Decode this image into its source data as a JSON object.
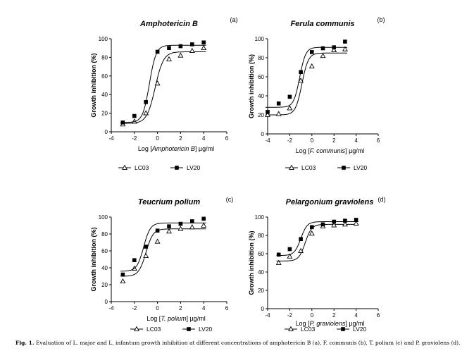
{
  "caption": {
    "label": "Fig. 1.",
    "text": "Evaluation of L. major and L. infantum growth inhibition at different concentrations of amphotericin B (a), F. communis (b), T. polium (c) and P. graviolens (d)."
  },
  "chart_data": [
    {
      "type": "scatter",
      "title": "Amphotericin B",
      "panel_label": "(a)",
      "xlabel_prefix": "Log [",
      "xlabel_italic": "Amphotericin B",
      "xlabel_suffix": "] µg/ml",
      "ylabel": "Growth inhibition (%)",
      "xlim": [
        -4,
        6
      ],
      "ylim": [
        0,
        100
      ],
      "xticks": [
        -4,
        -2,
        0,
        2,
        4,
        6
      ],
      "yticks": [
        0,
        20,
        40,
        60,
        80,
        100
      ],
      "legend_position": "bottom",
      "series": [
        {
          "name": "LC03",
          "marker": "triangle-open",
          "x": [
            -3,
            -2,
            -1,
            0,
            1,
            2,
            3,
            4
          ],
          "y": [
            8,
            11,
            20,
            52,
            78,
            82,
            87,
            90
          ],
          "fit": {
            "bottom": 9,
            "top": 86,
            "logec50": -0.2,
            "hill": 1.2
          }
        },
        {
          "name": "LV20",
          "marker": "square-filled",
          "x": [
            -3,
            -2,
            -1,
            0,
            1,
            2,
            3,
            4
          ],
          "y": [
            10,
            17,
            32,
            86,
            90,
            92,
            94,
            96
          ],
          "fit": {
            "bottom": 10,
            "top": 93,
            "logec50": -0.7,
            "hill": 1.5
          }
        }
      ]
    },
    {
      "type": "scatter",
      "title": "Ferula communis",
      "panel_label": "(b)",
      "xlabel_prefix": "Log [",
      "xlabel_italic": "F. communis",
      "xlabel_suffix": "] µg/ml",
      "ylabel": "Growth inhibition (%)",
      "xlim": [
        -4,
        6
      ],
      "ylim": [
        0,
        100
      ],
      "xticks": [
        -4,
        -2,
        0,
        2,
        4,
        6
      ],
      "yticks": [
        0,
        20,
        40,
        60,
        80,
        100
      ],
      "legend_position": "bottom",
      "series": [
        {
          "name": "LC03",
          "marker": "triangle-open",
          "x": [
            -4,
            -3,
            -2,
            -1,
            0,
            1,
            2,
            3
          ],
          "y": [
            20,
            21,
            27,
            56,
            71,
            82,
            88,
            89
          ],
          "fit": {
            "bottom": 20,
            "top": 85,
            "logec50": -0.9,
            "hill": 1.5
          }
        },
        {
          "name": "LV20",
          "marker": "square-filled",
          "x": [
            -4,
            -3,
            -2,
            -1,
            0,
            1,
            2,
            3
          ],
          "y": [
            23,
            32,
            39,
            65,
            86,
            90,
            91,
            97
          ],
          "fit": {
            "bottom": 28,
            "top": 91,
            "logec50": -1.1,
            "hill": 1.6
          }
        }
      ]
    },
    {
      "type": "scatter",
      "title": "Teucrium polium",
      "panel_label": "(c)",
      "xlabel_prefix": "Log [",
      "xlabel_italic": "T. polium",
      "xlabel_suffix": "] µg/ml",
      "ylabel": "Growth inhibition (%)",
      "xlim": [
        -4,
        6
      ],
      "ylim": [
        0,
        100
      ],
      "xticks": [
        -4,
        -2,
        0,
        2,
        4,
        6
      ],
      "yticks": [
        0,
        20,
        40,
        60,
        80,
        100
      ],
      "legend_position": "bottom",
      "series": [
        {
          "name": "LC03",
          "marker": "triangle-open",
          "x": [
            -3,
            -2,
            -1,
            0,
            1,
            2,
            3,
            4
          ],
          "y": [
            24,
            39,
            54,
            71,
            83,
            86,
            88,
            90
          ],
          "fit": {
            "bottom": 30,
            "top": 86,
            "logec50": -1.0,
            "hill": 1.4
          }
        },
        {
          "name": "LV20",
          "marker": "square-filled",
          "x": [
            -3,
            -2,
            -1,
            0,
            1,
            2,
            3,
            4
          ],
          "y": [
            32,
            49,
            65,
            84,
            89,
            92,
            95,
            98
          ],
          "fit": {
            "bottom": 36,
            "top": 93,
            "logec50": -1.2,
            "hill": 1.5
          }
        }
      ]
    },
    {
      "type": "scatter",
      "title": "Pelargonium graviolens",
      "panel_label": "(d)",
      "xlabel_prefix": "Log [",
      "xlabel_italic": "P. graviolens",
      "xlabel_suffix": "] µg/ml",
      "ylabel": "Growth inhibition (%)",
      "xlim": [
        -4,
        6
      ],
      "ylim": [
        0,
        100
      ],
      "xticks": [
        -4,
        -2,
        0,
        2,
        4,
        6
      ],
      "yticks": [
        0,
        20,
        40,
        60,
        80,
        100
      ],
      "legend_position": "bottom",
      "series": [
        {
          "name": "LC03",
          "marker": "triangle-open",
          "x": [
            -3,
            -2,
            -1,
            0,
            1,
            2,
            3,
            4
          ],
          "y": [
            50,
            57,
            63,
            82,
            90,
            91,
            92,
            93
          ],
          "fit": {
            "bottom": 52,
            "top": 92,
            "logec50": -0.6,
            "hill": 1.5
          }
        },
        {
          "name": "LV20",
          "marker": "square-filled",
          "x": [
            -3,
            -2,
            -1,
            0,
            1,
            2,
            3,
            4
          ],
          "y": [
            59,
            65,
            76,
            89,
            92,
            95,
            96,
            97
          ],
          "fit": {
            "bottom": 58,
            "top": 95,
            "logec50": -1.0,
            "hill": 1.5
          }
        }
      ]
    }
  ]
}
